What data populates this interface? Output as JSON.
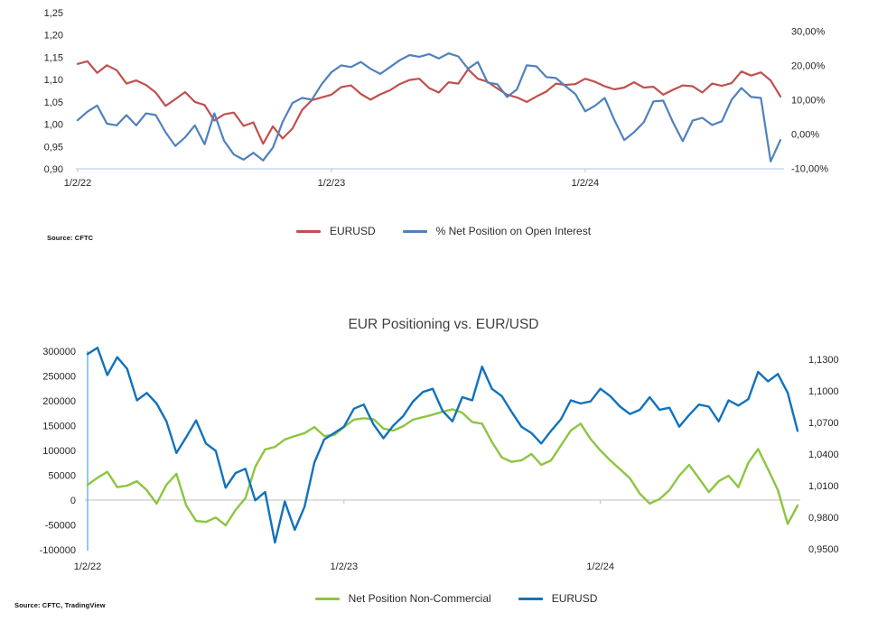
{
  "top_chart": {
    "source": "Source: CFTC",
    "legend": [
      {
        "label": "EURUSD",
        "color": "#C0504D"
      },
      {
        "label": "% Net Position on Open Interest",
        "color": "#4F81BD"
      }
    ]
  },
  "bottom_chart": {
    "title": "EUR Positioning vs. EUR/USD",
    "source": "Source: CFTC, TradingView",
    "legend": [
      {
        "label": "Net Position Non-Commercial",
        "color": "#8CC540"
      },
      {
        "label": "EURUSD",
        "color": "#1072BC"
      }
    ]
  },
  "chart_data": [
    {
      "type": "line",
      "title": "",
      "x_tick_labels": [
        "1/2/22",
        "1/2/23",
        "1/2/24"
      ],
      "x_tick_indices": [
        0,
        26,
        52
      ],
      "x_note": "biweekly observations from 1/2/22 to late 2024",
      "left_axis": {
        "ticks": [
          "1,25",
          "1,20",
          "1,15",
          "1,10",
          "1,05",
          "1,00",
          "0,95",
          "0,90"
        ],
        "values": [
          1.25,
          1.2,
          1.15,
          1.1,
          1.05,
          1.0,
          0.95,
          0.9
        ],
        "range": [
          0.9,
          1.25
        ]
      },
      "right_axis": {
        "ticks": [
          "30,00%",
          "20,00%",
          "10,00%",
          "0,00%",
          "-10,00%"
        ],
        "values": [
          30,
          20,
          10,
          0,
          -10
        ],
        "range": [
          -10,
          30
        ],
        "unit": "%"
      },
      "grid": "off",
      "legend_position": "bottom",
      "series": [
        {
          "name": "EURUSD",
          "axis": "left",
          "color": "#C0504D",
          "values": [
            1.135,
            1.141,
            1.115,
            1.132,
            1.121,
            1.091,
            1.098,
            1.088,
            1.071,
            1.041,
            1.056,
            1.072,
            1.05,
            1.043,
            1.008,
            1.022,
            1.026,
            0.996,
            1.004,
            0.956,
            0.995,
            0.968,
            0.99,
            1.032,
            1.054,
            1.06,
            1.066,
            1.083,
            1.087,
            1.068,
            1.055,
            1.067,
            1.076,
            1.09,
            1.099,
            1.102,
            1.081,
            1.071,
            1.094,
            1.091,
            1.123,
            1.102,
            1.095,
            1.08,
            1.066,
            1.06,
            1.05,
            1.062,
            1.073,
            1.091,
            1.088,
            1.09,
            1.102,
            1.095,
            1.085,
            1.078,
            1.082,
            1.094,
            1.082,
            1.084,
            1.066,
            1.077,
            1.087,
            1.085,
            1.071,
            1.091,
            1.086,
            1.092,
            1.118,
            1.109,
            1.116,
            1.098,
            1.062
          ]
        },
        {
          "name": "% Net Position on Open Interest",
          "axis": "right",
          "color": "#4F81BD",
          "values": [
            4.0,
            6.5,
            8.3,
            3.0,
            2.5,
            5.5,
            2.5,
            6.0,
            5.5,
            0.5,
            -3.5,
            -1.0,
            2.5,
            -3.0,
            6.0,
            -2.0,
            -6.0,
            -7.5,
            -5.5,
            -7.7,
            -4.0,
            3.5,
            9.0,
            10.5,
            10.0,
            14.5,
            18.0,
            20.0,
            19.5,
            21.0,
            19.0,
            17.5,
            19.5,
            21.5,
            23.0,
            22.5,
            23.3,
            22.0,
            23.5,
            22.6,
            19.0,
            21.0,
            15.0,
            14.5,
            10.8,
            13.0,
            20.0,
            19.7,
            16.6,
            16.3,
            13.9,
            11.6,
            6.6,
            8.2,
            10.5,
            4.0,
            -1.8,
            0.5,
            3.4,
            9.5,
            9.7,
            3.4,
            -2.1,
            3.9,
            4.7,
            2.6,
            3.7,
            10.0,
            13.4,
            10.8,
            10.5,
            -8.0,
            -1.8
          ]
        }
      ]
    },
    {
      "type": "line",
      "title": "EUR Positioning vs. EUR/USD",
      "x_tick_labels": [
        "1/2/22",
        "1/2/23",
        "1/2/24"
      ],
      "x_tick_indices": [
        0,
        26,
        52
      ],
      "x_note": "biweekly observations from 1/2/22 to late 2024",
      "left_axis": {
        "ticks": [
          "300000",
          "250000",
          "200000",
          "150000",
          "100000",
          "50000",
          "0",
          "-50000",
          "-100000"
        ],
        "values": [
          300000,
          250000,
          200000,
          150000,
          100000,
          50000,
          0,
          -50000,
          -100000
        ],
        "range": [
          -100000,
          300000
        ]
      },
      "right_axis": {
        "ticks": [
          "1,1300",
          "1,1000",
          "1,0700",
          "1,0400",
          "1,0100",
          "0,9800",
          "0,9500"
        ],
        "values": [
          1.13,
          1.1,
          1.07,
          1.04,
          1.01,
          0.98,
          0.95
        ],
        "range": [
          0.95,
          1.13
        ]
      },
      "grid": "zero-line-only",
      "legend_position": "bottom",
      "series": [
        {
          "name": "Net Position Non-Commercial",
          "axis": "left",
          "color": "#8CC540",
          "values": [
            31000,
            45000,
            57000,
            26000,
            29000,
            38000,
            20000,
            -7000,
            31000,
            53000,
            -11000,
            -42000,
            -44000,
            -35000,
            -51000,
            -20000,
            4000,
            67000,
            102000,
            107000,
            122000,
            129000,
            135000,
            147000,
            129000,
            131000,
            147000,
            162000,
            165000,
            163000,
            144000,
            140000,
            149000,
            162000,
            167000,
            172000,
            178000,
            183000,
            176000,
            157000,
            154000,
            117000,
            86000,
            77000,
            80000,
            93000,
            71000,
            80000,
            110000,
            140000,
            154000,
            123000,
            100000,
            80000,
            62000,
            44000,
            13000,
            -7000,
            2000,
            20000,
            49000,
            71000,
            44000,
            16000,
            38000,
            49000,
            26000,
            75000,
            103000,
            62000,
            20000,
            -48000,
            -11000
          ]
        },
        {
          "name": "EURUSD",
          "axis": "right",
          "color": "#1072BC",
          "values": [
            1.135,
            1.141,
            1.115,
            1.132,
            1.121,
            1.091,
            1.098,
            1.088,
            1.071,
            1.041,
            1.056,
            1.072,
            1.05,
            1.043,
            1.008,
            1.022,
            1.026,
            0.996,
            1.004,
            0.956,
            0.995,
            0.968,
            0.99,
            1.032,
            1.054,
            1.06,
            1.066,
            1.083,
            1.087,
            1.068,
            1.055,
            1.067,
            1.076,
            1.09,
            1.099,
            1.102,
            1.081,
            1.071,
            1.094,
            1.091,
            1.123,
            1.102,
            1.095,
            1.08,
            1.066,
            1.06,
            1.05,
            1.062,
            1.073,
            1.091,
            1.088,
            1.09,
            1.102,
            1.095,
            1.085,
            1.078,
            1.082,
            1.094,
            1.082,
            1.084,
            1.066,
            1.077,
            1.087,
            1.085,
            1.071,
            1.091,
            1.086,
            1.092,
            1.118,
            1.109,
            1.116,
            1.098,
            1.062
          ]
        }
      ]
    }
  ]
}
